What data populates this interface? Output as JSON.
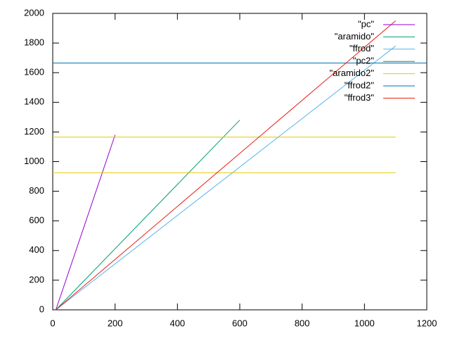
{
  "chart_data": {
    "type": "line",
    "xlim": [
      0,
      1200
    ],
    "xticks": [
      0,
      200,
      400,
      600,
      800,
      1000,
      1200
    ],
    "ylim": [
      0,
      2000
    ],
    "yticks": [
      0,
      200,
      400,
      600,
      800,
      1000,
      1200,
      1400,
      1600,
      1800,
      2000
    ],
    "legend": "top-right",
    "series": [
      {
        "name": "\"pc\"",
        "color": "#9400d3",
        "x": [
          10,
          200
        ],
        "values": [
          0,
          1180
        ]
      },
      {
        "name": "\"aramido\"",
        "color": "#009e73",
        "x": [
          10,
          600
        ],
        "values": [
          0,
          1280
        ]
      },
      {
        "name": "\"ffrod\"",
        "color": "#56b4e9",
        "x": [
          10,
          1100
        ],
        "values": [
          0,
          1780
        ]
      },
      {
        "name": "\"pc2\"",
        "color": "#556b2f",
        "x": [
          0,
          1200
        ],
        "values": [
          1665,
          1665
        ]
      },
      {
        "name": "\"aramido2\"",
        "color": "#e6c800",
        "x": [
          0,
          1100,
          1100,
          0,
          1100
        ],
        "values": [
          1165,
          1165,
          null,
          925,
          925
        ]
      },
      {
        "name": "\"ffrod2\"",
        "color": "#0072b2",
        "x": [
          0,
          1200
        ],
        "values": [
          1665,
          1665
        ]
      },
      {
        "name": "\"ffrod3\"",
        "color": "#e51e10",
        "x": [
          10,
          1100
        ],
        "values": [
          0,
          1950
        ]
      }
    ]
  }
}
